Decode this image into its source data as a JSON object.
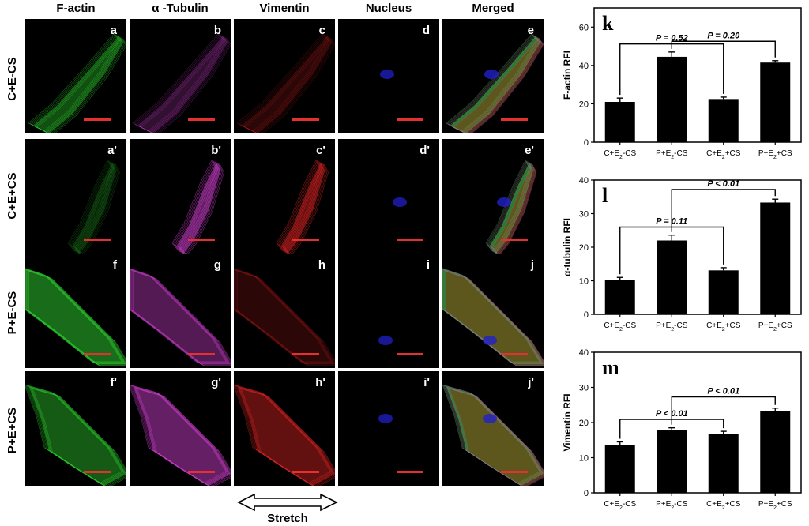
{
  "columns": [
    "F-actin",
    "α -Tubulin",
    "Vimentin",
    "Nucleus",
    "Merged"
  ],
  "rows": [
    {
      "label": "C+E-CS",
      "panels": [
        "a",
        "b",
        "c",
        "d",
        "e"
      ]
    },
    {
      "label": "C+E+CS",
      "panels": [
        "a'",
        "b'",
        "c'",
        "d'",
        "e'"
      ]
    },
    {
      "label": "P+E-CS",
      "panels": [
        "f",
        "g",
        "h",
        "i",
        "j"
      ]
    },
    {
      "label": "P+E+CS",
      "panels": [
        "f'",
        "g'",
        "h'",
        "i'",
        "j'"
      ]
    }
  ],
  "stretch_label": "Stretch",
  "colors": {
    "f_actin": "#2fd02f",
    "tubulin": "#cc3fcc",
    "vimentin": "#e02525",
    "nucleus": "#2020c8",
    "scale_bar": "#e53030"
  },
  "chart_data": [
    {
      "panel_letter": "k",
      "type": "bar",
      "categories": [
        "C+E2-CS",
        "P+E2-CS",
        "C+E2+CS",
        "P+E2+CS"
      ],
      "values": [
        21,
        44.5,
        22.5,
        41.5
      ],
      "errors": [
        2,
        2.5,
        1,
        1
      ],
      "ylabel": "F-actin RFI",
      "ylim": [
        0,
        70
      ],
      "yticks": [
        0,
        20,
        40,
        60
      ],
      "annotations": [
        {
          "from": 0,
          "to": 2,
          "text": "P = 0.52"
        },
        {
          "from": 1,
          "to": 3,
          "text": "P = 0.20"
        }
      ]
    },
    {
      "panel_letter": "l",
      "type": "bar",
      "categories": [
        "C+E2-CS",
        "P+E2-CS",
        "C+E2+CS",
        "P+E2+CS"
      ],
      "values": [
        10.3,
        22,
        13.1,
        33.3
      ],
      "errors": [
        0.7,
        1.6,
        0.8,
        1.0
      ],
      "ylabel": "α-tubulin RFI",
      "ylim": [
        0,
        40
      ],
      "yticks": [
        0,
        10,
        20,
        30,
        40
      ],
      "annotations": [
        {
          "from": 0,
          "to": 2,
          "text": "P = 0.11"
        },
        {
          "from": 1,
          "to": 3,
          "text": "P < 0.01"
        }
      ]
    },
    {
      "panel_letter": "m",
      "type": "bar",
      "categories": [
        "C+E2-CS",
        "P+E2-CS",
        "C+E2+CS",
        "P+E2+CS"
      ],
      "values": [
        13.5,
        17.8,
        16.8,
        23.3
      ],
      "errors": [
        1.0,
        0.7,
        0.7,
        0.8
      ],
      "ylabel": "Vimentin RFI",
      "ylim": [
        0,
        40
      ],
      "yticks": [
        0,
        10,
        20,
        30,
        40
      ],
      "annotations": [
        {
          "from": 0,
          "to": 2,
          "text": "P < 0.01"
        },
        {
          "from": 1,
          "to": 3,
          "text": "P < 0.01"
        }
      ]
    }
  ]
}
